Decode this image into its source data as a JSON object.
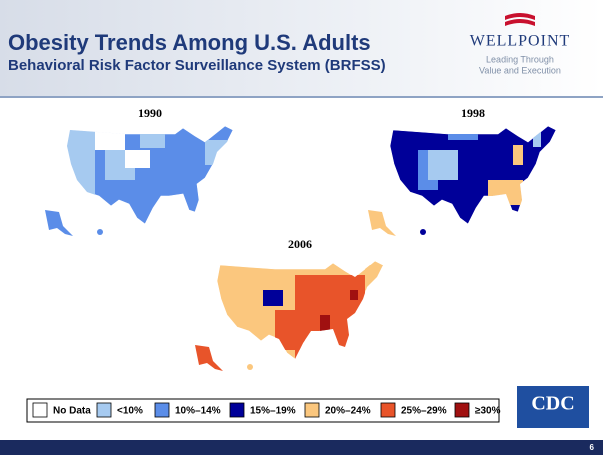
{
  "header": {
    "title": "Obesity Trends Among U.S. Adults",
    "subtitle": "Behavioral Risk Factor Surveillance System (BRFSS)"
  },
  "logo": {
    "name": "WELLPOINT",
    "tagline_1": "Leading Through",
    "tagline_2": "Value and Execution"
  },
  "maps": [
    {
      "year": "1990"
    },
    {
      "year": "1998"
    },
    {
      "year": "2006"
    }
  ],
  "legend": [
    {
      "label": "No Data",
      "color": "#ffffff"
    },
    {
      "label": "<10%",
      "color": "#a6caf0"
    },
    {
      "label": "10%–14%",
      "color": "#5b8de8"
    },
    {
      "label": "15%–19%",
      "color": "#000099"
    },
    {
      "label": "20%–24%",
      "color": "#fbc77e"
    },
    {
      "label": "25%–29%",
      "color": "#e8542a"
    },
    {
      "label": "≥30%",
      "color": "#a01010"
    }
  ],
  "cdc": "CDC",
  "page_number": "6"
}
